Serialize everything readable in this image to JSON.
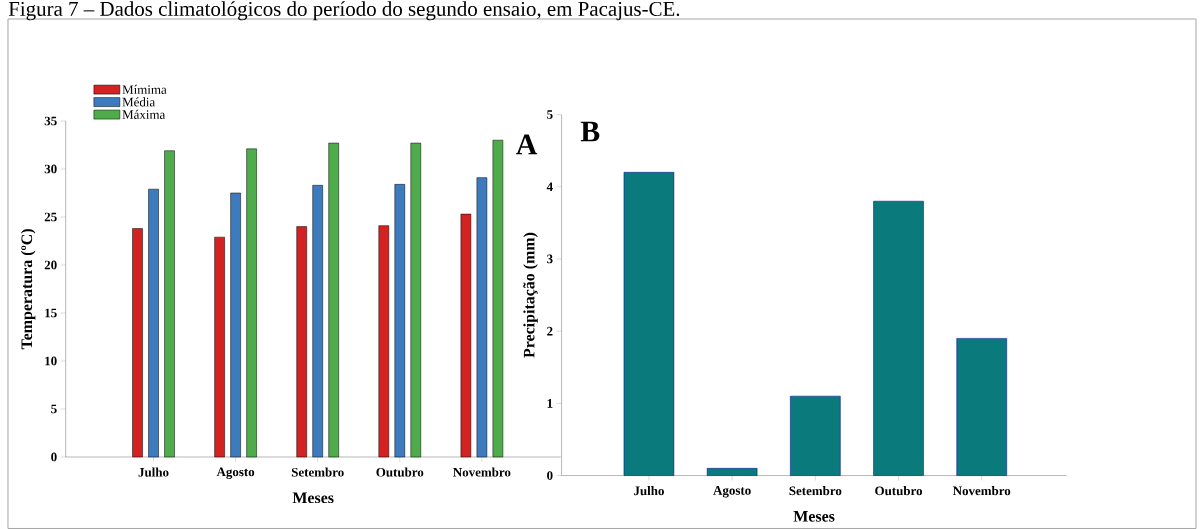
{
  "chart_data": [
    {
      "type": "bar",
      "title": "Figura 7 – Dados climatológicos do período do segundo ensaio, em Pacajus-CE.",
      "xlabel": "Meses",
      "ylabel": "Temperatura (ºC)",
      "categories": [
        "Julho",
        "Agosto",
        "Setembro",
        "Outubro",
        "Novembro"
      ],
      "series": [
        {
          "name": "Mímima",
          "color": "#d42121",
          "values": [
            23.8,
            22.9,
            24.0,
            24.1,
            25.3
          ]
        },
        {
          "name": "Média",
          "color": "#3c7bbd",
          "values": [
            27.9,
            27.5,
            28.3,
            28.4,
            29.1
          ]
        },
        {
          "name": "Máxima",
          "color": "#4ead4a",
          "values": [
            31.9,
            32.1,
            32.7,
            32.7,
            33.0
          ]
        }
      ],
      "ylim": [
        0,
        35
      ],
      "yticks": [
        0,
        5,
        10,
        15,
        20,
        25,
        30,
        35
      ],
      "legend": "top left",
      "annotations": [
        "A"
      ]
    },
    {
      "type": "bar",
      "xlabel": "Meses",
      "ylabel": "Precipitação (mm)",
      "categories": [
        "Julho",
        "Agosto",
        "Setembro",
        "Outubro",
        "Novembro"
      ],
      "series": [
        {
          "color": "#0b7a7c",
          "values": [
            4.2,
            0.1,
            1.1,
            3.8,
            1.9
          ]
        }
      ],
      "ylim": [
        0,
        5
      ],
      "yticks": [
        0,
        1,
        2,
        3,
        4,
        5
      ],
      "annotations": [
        "B"
      ]
    }
  ]
}
